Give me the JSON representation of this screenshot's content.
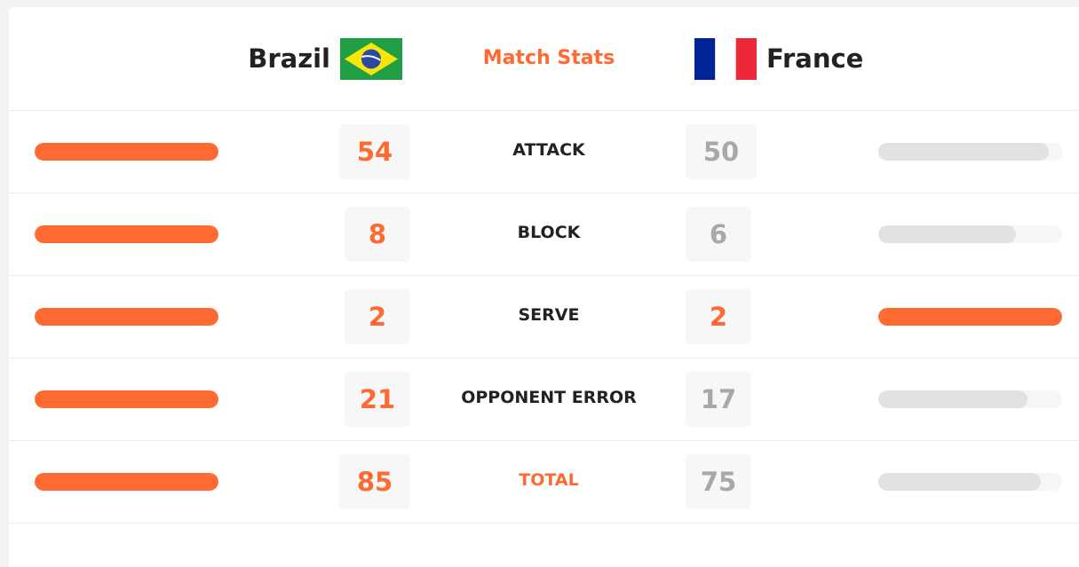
{
  "header": {
    "home_team": "Brazil",
    "away_team": "France",
    "title": "Match Stats"
  },
  "colors": {
    "accent": "#ff6a33",
    "bar_lead": "#ff6a33",
    "bar_trail": "#e2e2e2",
    "value_trail": "#a8a8a8"
  },
  "stats": [
    {
      "label": "ATTACK",
      "home": "54",
      "away": "50",
      "home_share": 1.0,
      "away_share": 0.926,
      "home_lead": true,
      "away_lead": false
    },
    {
      "label": "BLOCK",
      "home": "8",
      "away": "6",
      "home_share": 1.0,
      "away_share": 0.75,
      "home_lead": true,
      "away_lead": false
    },
    {
      "label": "SERVE",
      "home": "2",
      "away": "2",
      "home_share": 1.0,
      "away_share": 1.0,
      "home_lead": true,
      "away_lead": true
    },
    {
      "label": "OPPONENT ERROR",
      "home": "21",
      "away": "17",
      "home_share": 1.0,
      "away_share": 0.81,
      "home_lead": true,
      "away_lead": false
    },
    {
      "label": "TOTAL",
      "home": "85",
      "away": "75",
      "home_share": 1.0,
      "away_share": 0.882,
      "home_lead": true,
      "away_lead": false
    }
  ]
}
